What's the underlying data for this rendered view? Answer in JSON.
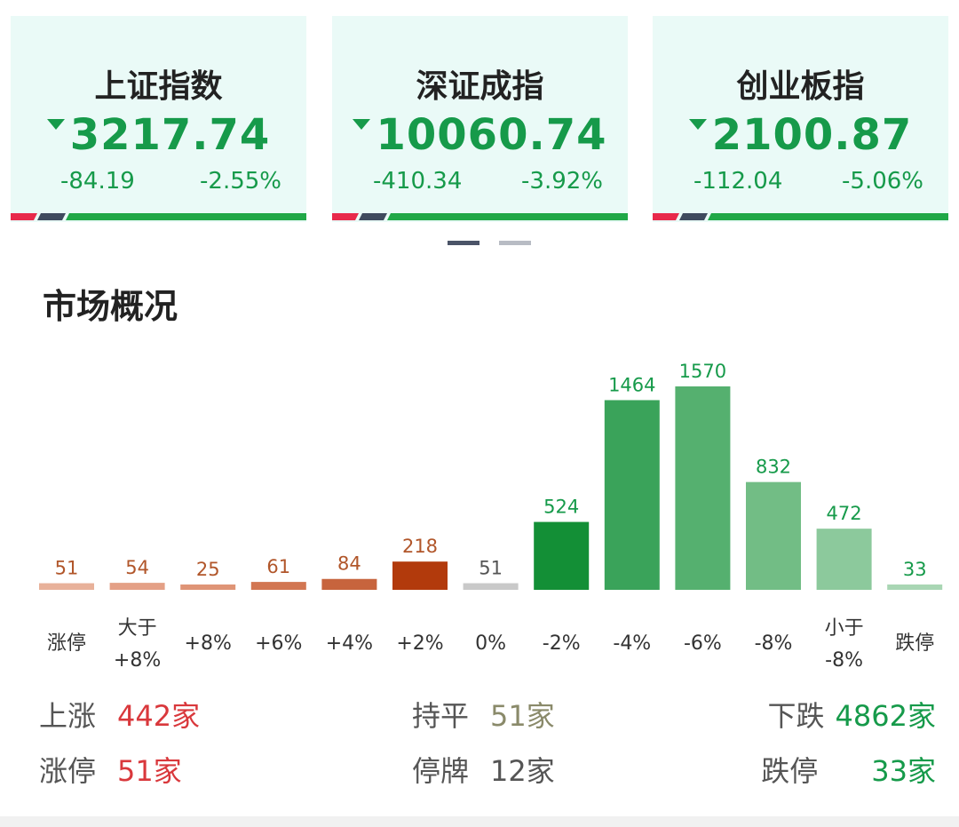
{
  "indices": [
    {
      "name": "上证指数",
      "value": "3217.74",
      "change": "-84.19",
      "pct": "-2.55%"
    },
    {
      "name": "深证成指",
      "value": "10060.74",
      "change": "-410.34",
      "pct": "-3.92%"
    },
    {
      "name": "创业板指",
      "value": "2100.87",
      "change": "-112.04",
      "pct": "-5.06%"
    }
  ],
  "market": {
    "title": "市场概况",
    "stats": {
      "up_label": "上涨",
      "up_value": "442家",
      "flat_label": "持平",
      "flat_value": "51家",
      "down_label": "下跌",
      "down_value": "4862家",
      "limit_up_label": "涨停",
      "limit_up_value": "51家",
      "suspended_label": "停牌",
      "suspended_value": "12家",
      "limit_down_label": "跌停",
      "limit_down_value": "33家"
    }
  },
  "colors": {
    "up": "#d9383c",
    "down": "#169a4a",
    "flat": "#8a8a6a",
    "card_bg": "#eafaf7"
  },
  "chart_data": {
    "type": "bar",
    "categories": [
      "涨停",
      "大于\n+8%",
      "+8%",
      "+6%",
      "+4%",
      "+2%",
      "0%",
      "-2%",
      "-4%",
      "-6%",
      "-8%",
      "小于\n-8%",
      "跌停"
    ],
    "values": [
      51,
      54,
      25,
      61,
      84,
      218,
      51,
      524,
      1464,
      1570,
      832,
      472,
      33
    ],
    "colors": [
      "#e8b19a",
      "#e4a086",
      "#df9476",
      "#d27652",
      "#c7643d",
      "#b23a0c",
      "#c9c9c9",
      "#138f36",
      "#3aa35a",
      "#55b06f",
      "#72bd85",
      "#8cc99c",
      "#a9d6b4"
    ],
    "label_colors": [
      "#b1562a",
      "#b1562a",
      "#b1562a",
      "#b1562a",
      "#b1562a",
      "#b1562a",
      "#555555",
      "#169a4a",
      "#169a4a",
      "#169a4a",
      "#169a4a",
      "#169a4a",
      "#169a4a"
    ]
  }
}
